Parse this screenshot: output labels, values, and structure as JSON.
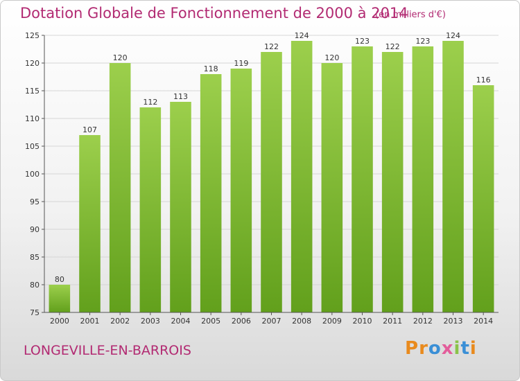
{
  "header": {
    "title": "Dotation Globale de Fonctionnement de 2000 à 2014",
    "unit_note": "(en milliers d'€)"
  },
  "footer": {
    "commune": "LONGEVILLE-EN-BARROIS",
    "brand": "Proxiti",
    "brand_colors": [
      "#e98a1d",
      "#e98a1d",
      "#3a8fd6",
      "#e35d9b",
      "#8bc34a",
      "#3a8fd6",
      "#e98a1d"
    ]
  },
  "colors": {
    "title": "#b22a72",
    "bar_top": "#9ccf4c",
    "bar_bottom": "#62a01c",
    "grid": "#d6d6d6"
  },
  "chart_data": {
    "type": "bar",
    "categories": [
      "2000",
      "2001",
      "2002",
      "2003",
      "2004",
      "2005",
      "2006",
      "2007",
      "2008",
      "2009",
      "2010",
      "2011",
      "2012",
      "2013",
      "2014"
    ],
    "values": [
      80,
      107,
      120,
      112,
      113,
      118,
      119,
      122,
      124,
      120,
      123,
      122,
      123,
      124,
      116
    ],
    "yticks": [
      75,
      80,
      85,
      90,
      95,
      100,
      105,
      110,
      115,
      120,
      125
    ],
    "ylim": [
      75,
      125
    ],
    "grid": true,
    "title": "Dotation Globale de Fonctionnement de 2000 à 2014",
    "xlabel": "",
    "ylabel": ""
  }
}
